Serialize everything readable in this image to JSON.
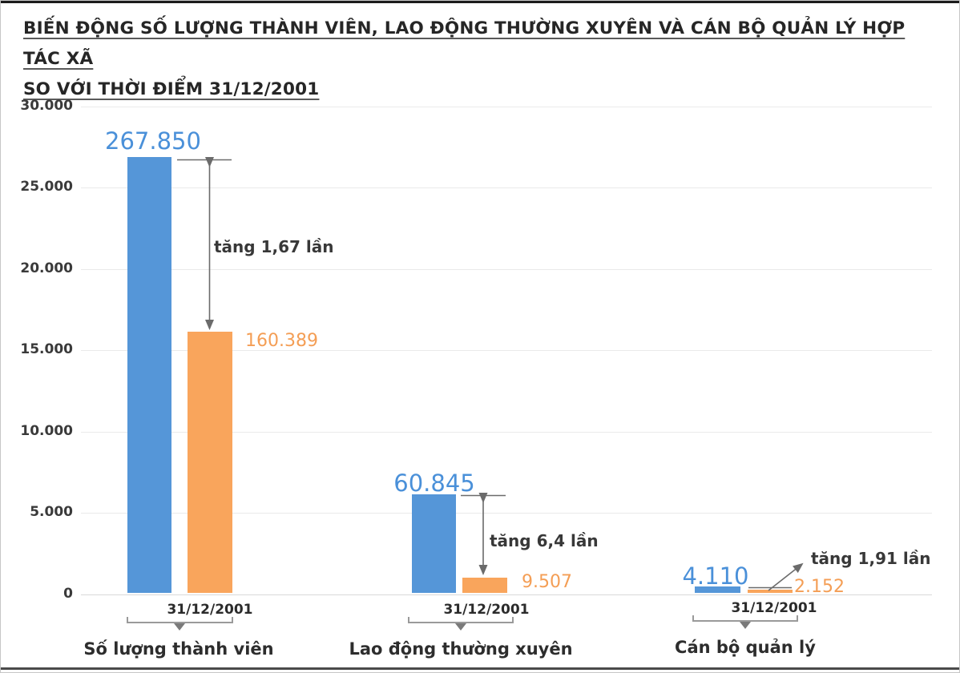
{
  "title": {
    "line1": "BIẾN ĐỘNG SỐ LƯỢNG THÀNH VIÊN, LAO ĐỘNG THƯỜNG XUYÊN VÀ CÁN BỘ QUẢN LÝ HỢP TÁC XÃ",
    "line2": "SO VỚI THỜI ĐIỂM 31/12/2001"
  },
  "colors": {
    "blue_bar": "#5596d8",
    "orange_bar": "#f9a55c",
    "blue_value": "#4a90d9",
    "orange_value": "#f49e55",
    "arrow": "#6b6b6b"
  },
  "chart_data": {
    "type": "bar",
    "title": "BIẾN ĐỘNG SỐ LƯỢNG THÀNH VIÊN, LAO ĐỘNG THƯỜNG XUYÊN VÀ CÁN BỘ QUẢN LÝ HỢP TÁC XÃ SO VỚI THỜI ĐIỂM 31/12/2001",
    "xlabel": "",
    "ylabel": "",
    "ylim": [
      0,
      30000
    ],
    "y_tick_labels": [
      "30.000",
      "25.000",
      "20.000",
      "15.000",
      "10.000",
      "5.000",
      "0"
    ],
    "grid": "horizontal",
    "legend": "none",
    "bar_plot_scale": "bars are drawn at value/10 against the y axis",
    "categories": [
      "Số lượng thành viên",
      "Lao động thường xuyên",
      "Cán bộ quản lý"
    ],
    "groups": [
      {
        "category": "Số lượng thành viên",
        "date_label": "31/12/2001",
        "blue": {
          "value": 267850,
          "label": "267.850"
        },
        "orange": {
          "value": 160389,
          "label": "160.389"
        },
        "annotation": "tăng 1,67 lần"
      },
      {
        "category": "Lao động thường xuyên",
        "date_label": "31/12/2001",
        "blue": {
          "value": 60845,
          "label": "60.845"
        },
        "orange": {
          "value": 9507,
          "label": "9.507"
        },
        "annotation": "tăng 6,4 lần"
      },
      {
        "category": "Cán bộ quản lý",
        "date_label": "31/12/2001",
        "blue": {
          "value": 4110,
          "label": "4.110"
        },
        "orange": {
          "value": 2152,
          "label": "2.152"
        },
        "annotation": "tăng 1,91 lần"
      }
    ]
  }
}
